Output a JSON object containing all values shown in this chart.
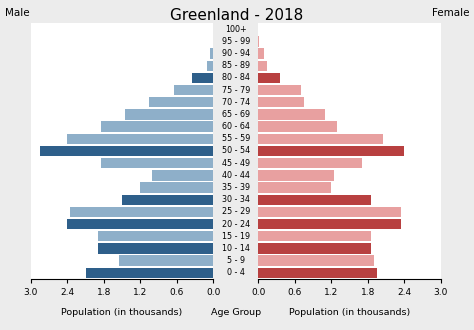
{
  "title": "Greenland - 2018",
  "age_groups": [
    "0 - 4",
    "5 - 9",
    "10 - 14",
    "15 - 19",
    "20 - 24",
    "25 - 29",
    "30 - 34",
    "35 - 39",
    "40 - 44",
    "45 - 49",
    "50 - 54",
    "55 - 59",
    "60 - 64",
    "65 - 69",
    "70 - 74",
    "75 - 79",
    "80 - 84",
    "85 - 89",
    "90 - 94",
    "95 - 99",
    "100+"
  ],
  "male_values": [
    2.1,
    1.55,
    1.9,
    1.9,
    2.4,
    2.35,
    1.5,
    1.2,
    1.0,
    1.85,
    2.85,
    2.4,
    1.85,
    1.45,
    1.05,
    0.65,
    0.35,
    0.1,
    0.05,
    0.01,
    0.0
  ],
  "female_values": [
    1.95,
    1.9,
    1.85,
    1.85,
    2.35,
    2.35,
    1.85,
    1.2,
    1.25,
    1.7,
    2.4,
    2.05,
    1.3,
    1.1,
    0.75,
    0.7,
    0.35,
    0.15,
    0.1,
    0.01,
    0.0
  ],
  "male_dark_indices": [
    0,
    2,
    4,
    6,
    10,
    16
  ],
  "female_dark_indices": [
    0,
    2,
    4,
    6,
    10,
    16
  ],
  "male_color_dark": "#2e5f8a",
  "male_color_light": "#8eafc9",
  "female_color_dark": "#b84040",
  "female_color_light": "#e8a0a0",
  "xlim": 3.0,
  "xticks": [
    0.0,
    0.6,
    1.2,
    1.8,
    2.4,
    3.0
  ],
  "xlabel_left": "Population (in thousands)",
  "xlabel_center": "Age Group",
  "xlabel_right": "Population (in thousands)",
  "label_male": "Male",
  "label_female": "Female",
  "background_color": "#ffffff",
  "figure_bg": "#ececec",
  "bar_height": 0.85
}
